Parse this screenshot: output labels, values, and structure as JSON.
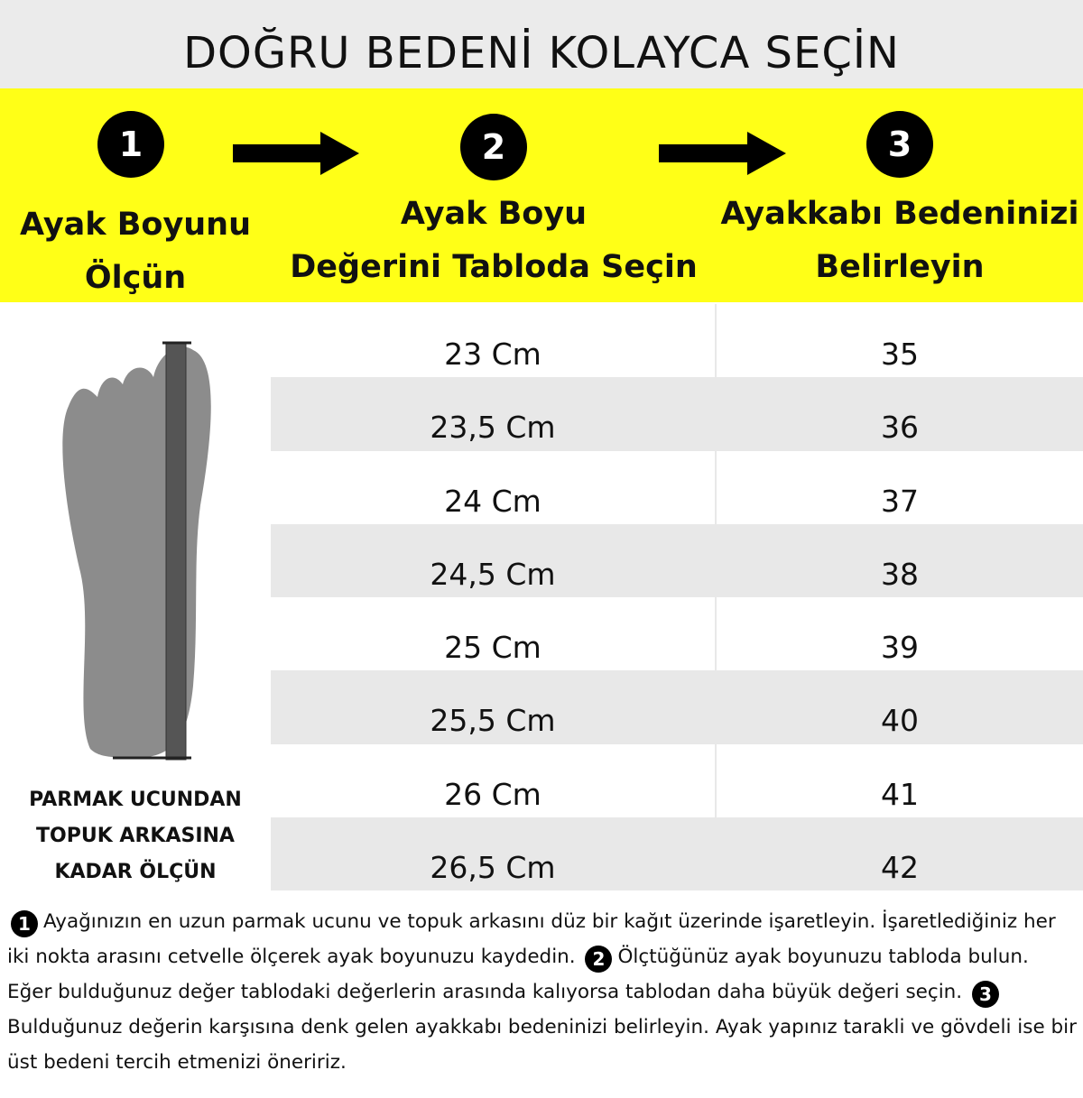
{
  "header": {
    "title": "DOĞRU BEDENİ KOLAYCA SEÇİN"
  },
  "steps": [
    {
      "number": "1",
      "label": [
        "Ayak Boyunu",
        "Ölçün"
      ]
    },
    {
      "number": "2",
      "label": [
        "Ayak Boyu",
        "Değerini Tabloda Seçin"
      ]
    },
    {
      "number": "3",
      "label": [
        "Ayakkabı Bedeninizi",
        "Belirleyin"
      ]
    }
  ],
  "foot_caption": [
    "PARMAK UCUNDAN",
    "TOPUK ARKASINA",
    "KADAR ÖLÇÜN"
  ],
  "table": {
    "rows": [
      [
        "23 Cm",
        "35"
      ],
      [
        "23,5 Cm",
        "36"
      ],
      [
        "24 Cm",
        "37"
      ],
      [
        "24,5 Cm",
        "38"
      ],
      [
        "25 Cm",
        "39"
      ],
      [
        "25,5 Cm",
        "40"
      ],
      [
        "26 Cm",
        "41"
      ],
      [
        "26,5 Cm",
        "42"
      ]
    ]
  },
  "instructions": [
    {
      "number": "1",
      "text": "Ayağınızın en uzun parmak ucunu ve topuk arkasını düz bir kağıt üzerinde işaretleyin. İşaretlediğiniz her iki nokta arasını cetvelle ölçerek ayak boyunuzu kaydedin."
    },
    {
      "number": "2",
      "text": "Ölçtüğünüz ayak boyunuzu tabloda bulun. Eğer bulduğunuz değer tablodaki değerlerin arasında kalıyorsa tablodan daha büyük değeri seçin."
    },
    {
      "number": "3",
      "text": "Bulduğunuz değerin karşısına denk gelen ayakkabı bedeninizi belirleyin. Ayak yapınız tarakli ve gövdeli ise bir üst bedeni tercih etmenizi öneririz."
    }
  ]
}
